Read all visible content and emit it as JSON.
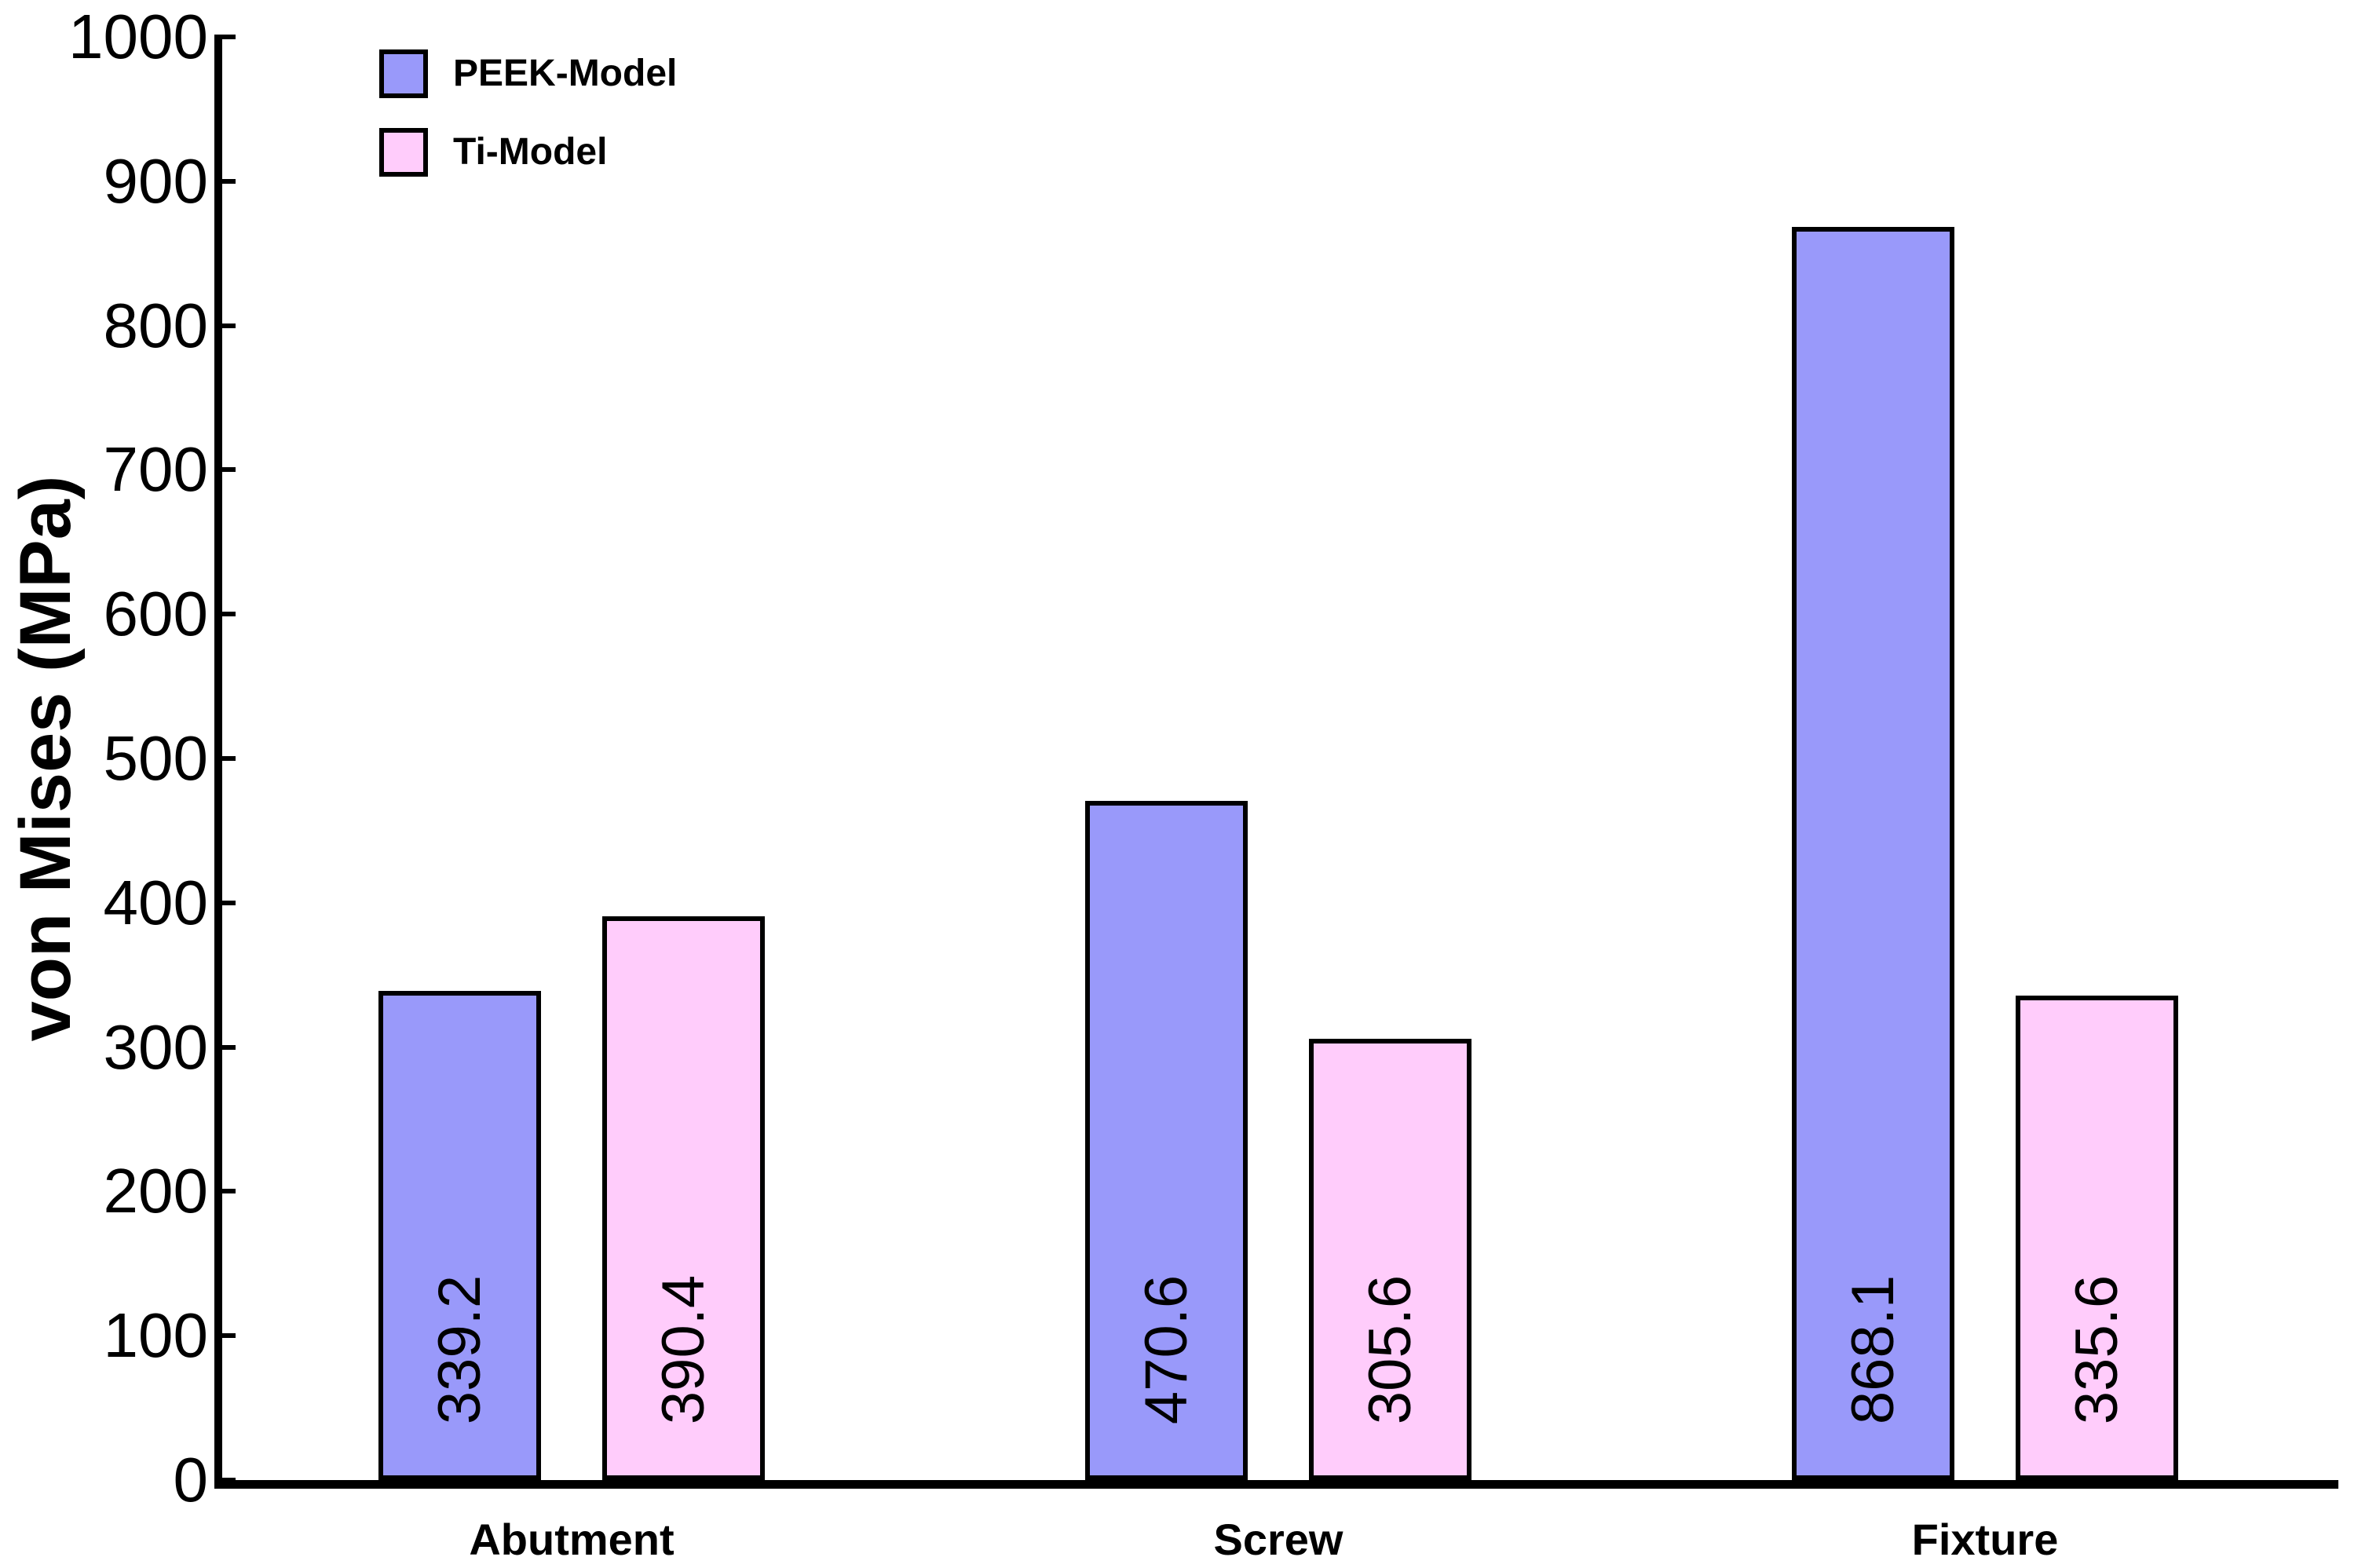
{
  "chart_data": {
    "type": "bar",
    "title": "",
    "categories": [
      "Abutment",
      "Screw",
      "Fixture"
    ],
    "series": [
      {
        "name": "PEEK-Model",
        "color": "#9999FA",
        "values": [
          339.2,
          470.6,
          868.1
        ],
        "value_labels": [
          "339.2",
          "470.6",
          "868.1"
        ]
      },
      {
        "name": "Ti-Model",
        "color": "#FFCCFB",
        "values": [
          390.4,
          305.6,
          335.6
        ],
        "value_labels": [
          "390.4",
          "305.6",
          "335.6"
        ]
      }
    ],
    "xlabel": "",
    "ylabel": "von Mises (MPa)",
    "ylim": [
      0,
      1000
    ],
    "ytick_step": 100,
    "ytick_labels": [
      "0",
      "100",
      "200",
      "300",
      "400",
      "500",
      "600",
      "700",
      "800",
      "900",
      "1000"
    ],
    "grid": false,
    "legend_position": "top-left-inside",
    "bar_value_label_style": "inside-bottom-rotated-90ccw",
    "axis_color": "#000000",
    "background_color": "#FFFFFF"
  }
}
